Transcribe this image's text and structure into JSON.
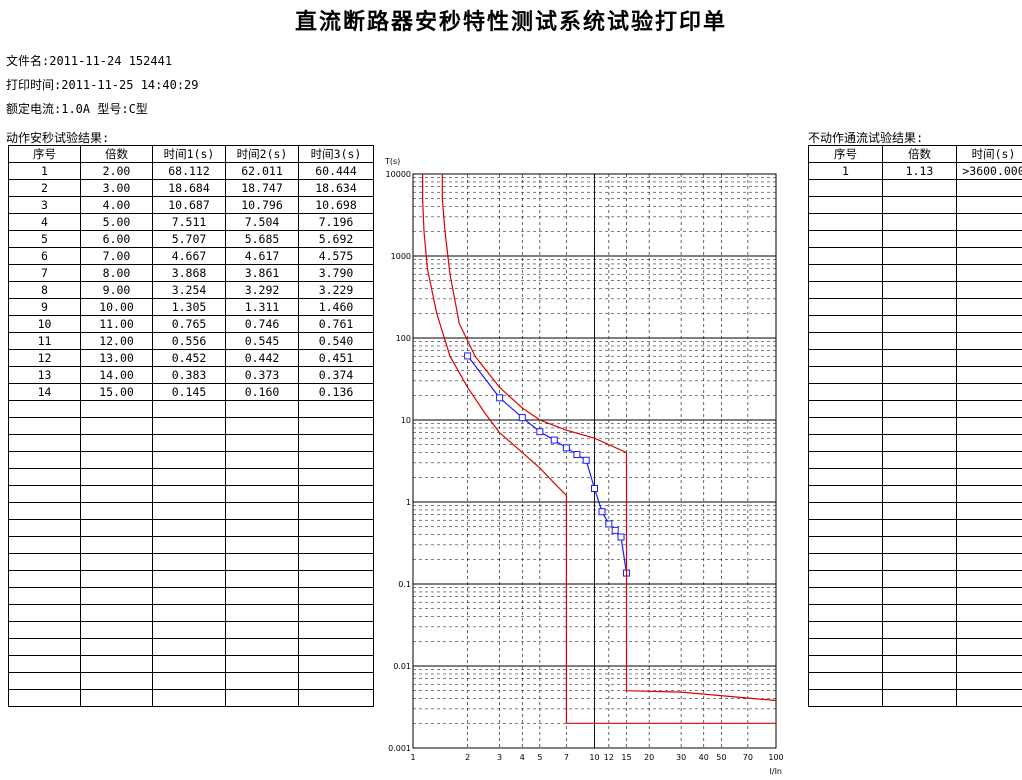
{
  "title": "直流断路器安秒特性测试系统试验打印单",
  "meta": {
    "file": "文件名:2011-11-24 152441",
    "print_time": "打印时间:2011-11-25 14:40:29",
    "rating": "额定电流:1.0A   型号:C型"
  },
  "action_table": {
    "label": "动作安秒试验结果:",
    "headers": [
      "序号",
      "倍数",
      "时间1(s)",
      "时间2(s)",
      "时间3(s)"
    ],
    "rows": [
      [
        "1",
        "2.00",
        "68.112",
        "62.011",
        "60.444"
      ],
      [
        "2",
        "3.00",
        "18.684",
        "18.747",
        "18.634"
      ],
      [
        "3",
        "4.00",
        "10.687",
        "10.796",
        "10.698"
      ],
      [
        "4",
        "5.00",
        "7.511",
        "7.504",
        "7.196"
      ],
      [
        "5",
        "6.00",
        "5.707",
        "5.685",
        "5.692"
      ],
      [
        "6",
        "7.00",
        "4.667",
        "4.617",
        "4.575"
      ],
      [
        "7",
        "8.00",
        "3.868",
        "3.861",
        "3.790"
      ],
      [
        "8",
        "9.00",
        "3.254",
        "3.292",
        "3.229"
      ],
      [
        "9",
        "10.00",
        "1.305",
        "1.311",
        "1.460"
      ],
      [
        "10",
        "11.00",
        "0.765",
        "0.746",
        "0.761"
      ],
      [
        "11",
        "12.00",
        "0.556",
        "0.545",
        "0.540"
      ],
      [
        "12",
        "13.00",
        "0.452",
        "0.442",
        "0.451"
      ],
      [
        "13",
        "14.00",
        "0.383",
        "0.373",
        "0.374"
      ],
      [
        "14",
        "15.00",
        "0.145",
        "0.160",
        "0.136"
      ]
    ],
    "empty_rows": 18
  },
  "nonaction_table": {
    "label": "不动作通流试验结果:",
    "headers": [
      "序号",
      "倍数",
      "时间(s)"
    ],
    "rows": [
      [
        "1",
        "1.13",
        ">3600.000"
      ]
    ],
    "empty_rows": 31
  },
  "chart_data": {
    "type": "scatter",
    "xscale": "log",
    "yscale": "log",
    "xlabel": "I/In",
    "ylabel": "T(s)",
    "xlim": [
      1,
      100
    ],
    "ylim": [
      0.001,
      10000
    ],
    "x_ticks": [
      "1",
      "2",
      "3",
      "4",
      "5",
      "7",
      "10",
      "12",
      "15",
      "20",
      "30",
      "40",
      "50",
      "70",
      "100"
    ],
    "y_ticks": [
      "0.001",
      "0.01",
      "0.1",
      "1",
      "10",
      "100",
      "1000",
      "10000"
    ],
    "grid": true,
    "series": [
      {
        "color": "#1a1aff",
        "marker": "square",
        "points": [
          [
            2,
            60.444
          ],
          [
            3,
            18.634
          ],
          [
            4,
            10.698
          ],
          [
            5,
            7.196
          ],
          [
            6,
            5.692
          ],
          [
            7,
            4.575
          ],
          [
            8,
            3.79
          ],
          [
            9,
            3.229
          ],
          [
            10,
            1.46
          ],
          [
            11,
            0.761
          ],
          [
            12,
            0.54
          ],
          [
            13,
            0.451
          ],
          [
            14,
            0.374
          ],
          [
            15,
            0.136
          ]
        ]
      },
      {
        "color": "#dd0000",
        "points": [
          [
            1.13,
            10000
          ],
          [
            1.13,
            5000
          ],
          [
            1.15,
            2000
          ],
          [
            1.2,
            700
          ],
          [
            1.35,
            200
          ],
          [
            1.6,
            60
          ],
          [
            2,
            25
          ],
          [
            2.5,
            12
          ],
          [
            3,
            7
          ],
          [
            4,
            4
          ],
          [
            5,
            2.6
          ],
          [
            6,
            1.7
          ],
          [
            7,
            1.2
          ],
          [
            7,
            0.002
          ],
          [
            100,
            0.002
          ]
        ]
      },
      {
        "color": "#dd0000",
        "points": [
          [
            1.45,
            10000
          ],
          [
            1.45,
            5000
          ],
          [
            1.5,
            2000
          ],
          [
            1.6,
            600
          ],
          [
            1.8,
            150
          ],
          [
            2.2,
            60
          ],
          [
            3,
            25
          ],
          [
            4,
            14
          ],
          [
            5,
            10
          ],
          [
            7,
            7.5
          ],
          [
            10,
            6
          ],
          [
            15,
            4
          ],
          [
            15,
            0.005
          ],
          [
            30,
            0.0048
          ],
          [
            100,
            0.0038
          ]
        ]
      }
    ]
  }
}
